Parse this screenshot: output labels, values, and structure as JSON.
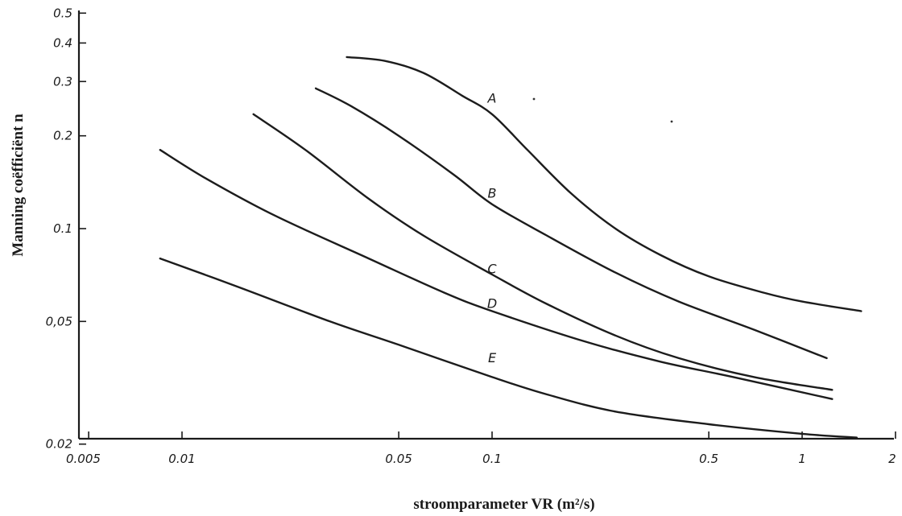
{
  "chart_data": {
    "type": "line",
    "xscale": "log",
    "yscale": "log",
    "xlim": [
      0.005,
      2
    ],
    "ylim": [
      0.02,
      0.5
    ],
    "xlabel": "stroomparameter VR (m²/s)",
    "ylabel": "Manning coëfficiënt n",
    "grid": false,
    "x_ticks": [
      {
        "value": 0.005,
        "label": "0.005"
      },
      {
        "value": 0.01,
        "label": "0.01"
      },
      {
        "value": 0.05,
        "label": "0.05"
      },
      {
        "value": 0.1,
        "label": "0.1"
      },
      {
        "value": 0.5,
        "label": "0.5"
      },
      {
        "value": 1,
        "label": "1"
      },
      {
        "value": 2,
        "label": "2"
      }
    ],
    "y_ticks": [
      {
        "value": 0.02,
        "label": "0.02"
      },
      {
        "value": 0.05,
        "label": "0,05"
      },
      {
        "value": 0.1,
        "label": "0.1"
      },
      {
        "value": 0.2,
        "label": "0.2"
      },
      {
        "value": 0.3,
        "label": "0.3"
      },
      {
        "value": 0.4,
        "label": "0.4"
      },
      {
        "value": 0.5,
        "label": "0.5"
      }
    ],
    "series": [
      {
        "name": "A",
        "label_at": [
          0.1,
          0.25
        ],
        "points": [
          [
            0.034,
            0.36
          ],
          [
            0.045,
            0.35
          ],
          [
            0.06,
            0.32
          ],
          [
            0.08,
            0.27
          ],
          [
            0.1,
            0.235
          ],
          [
            0.13,
            0.18
          ],
          [
            0.18,
            0.13
          ],
          [
            0.25,
            0.1
          ],
          [
            0.35,
            0.082
          ],
          [
            0.5,
            0.07
          ],
          [
            0.75,
            0.062
          ],
          [
            1.0,
            0.058
          ],
          [
            1.55,
            0.054
          ]
        ]
      },
      {
        "name": "B",
        "label_at": [
          0.1,
          0.123
        ],
        "points": [
          [
            0.027,
            0.285
          ],
          [
            0.035,
            0.25
          ],
          [
            0.05,
            0.2
          ],
          [
            0.075,
            0.15
          ],
          [
            0.1,
            0.12
          ],
          [
            0.15,
            0.095
          ],
          [
            0.25,
            0.072
          ],
          [
            0.4,
            0.058
          ],
          [
            0.7,
            0.047
          ],
          [
            1.2,
            0.038
          ]
        ]
      },
      {
        "name": "C",
        "label_at": [
          0.1,
          0.07
        ],
        "points": [
          [
            0.017,
            0.235
          ],
          [
            0.025,
            0.18
          ],
          [
            0.04,
            0.125
          ],
          [
            0.06,
            0.095
          ],
          [
            0.1,
            0.071
          ],
          [
            0.15,
            0.057
          ],
          [
            0.25,
            0.045
          ],
          [
            0.4,
            0.038
          ],
          [
            0.7,
            0.033
          ],
          [
            1.25,
            0.03
          ]
        ]
      },
      {
        "name": "D",
        "label_at": [
          0.1,
          0.054
        ],
        "points": [
          [
            0.0085,
            0.18
          ],
          [
            0.012,
            0.145
          ],
          [
            0.02,
            0.11
          ],
          [
            0.04,
            0.08
          ],
          [
            0.07,
            0.062
          ],
          [
            0.1,
            0.054
          ],
          [
            0.2,
            0.043
          ],
          [
            0.35,
            0.037
          ],
          [
            0.6,
            0.033
          ],
          [
            1.25,
            0.028
          ]
        ]
      },
      {
        "name": "E",
        "label_at": [
          0.1,
          0.036
        ],
        "points": [
          [
            0.0085,
            0.08
          ],
          [
            0.015,
            0.065
          ],
          [
            0.03,
            0.05
          ],
          [
            0.05,
            0.042
          ],
          [
            0.1,
            0.033
          ],
          [
            0.15,
            0.029
          ],
          [
            0.25,
            0.0255
          ],
          [
            0.5,
            0.0232
          ],
          [
            1.0,
            0.0216
          ],
          [
            1.5,
            0.021
          ]
        ]
      }
    ]
  }
}
